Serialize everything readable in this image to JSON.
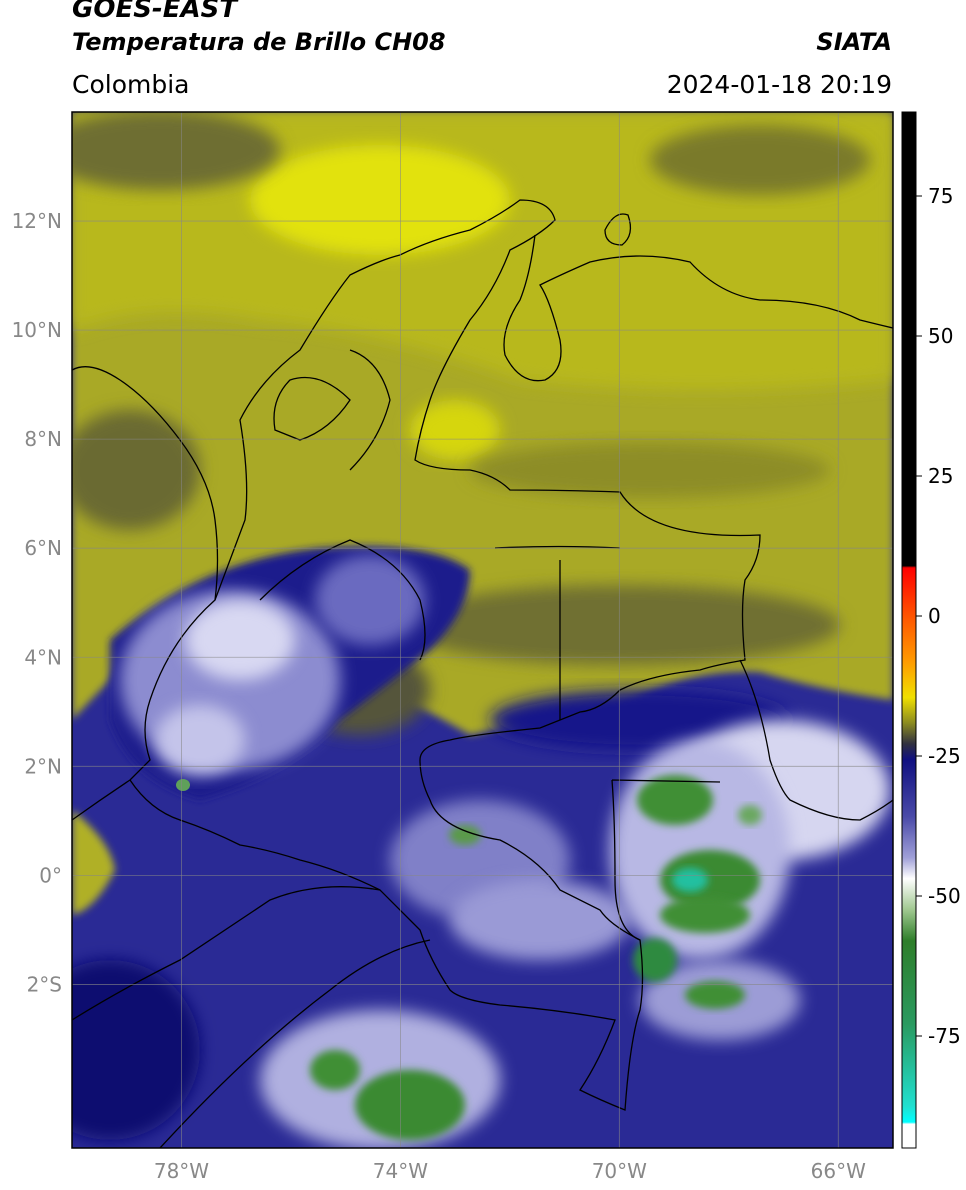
{
  "header": {
    "satellite": "GOES-EAST",
    "product": "Temperatura de Brillo CH08",
    "region": "Colombia",
    "source": "SIATA",
    "datetime": "2024-01-18 20:19"
  },
  "map": {
    "lat_range": [
      -5,
      14
    ],
    "lon_range": [
      -80,
      -65
    ],
    "lat_ticks": [
      {
        "value": 12,
        "label": "12°N"
      },
      {
        "value": 10,
        "label": "10°N"
      },
      {
        "value": 8,
        "label": "8°N"
      },
      {
        "value": 6,
        "label": "6°N"
      },
      {
        "value": 4,
        "label": "4°N"
      },
      {
        "value": 2,
        "label": "2°N"
      },
      {
        "value": 0,
        "label": "0°"
      },
      {
        "value": -2,
        "label": "2°S"
      }
    ],
    "lon_ticks": [
      {
        "value": -78,
        "label": "78°W"
      },
      {
        "value": -74,
        "label": "74°W"
      },
      {
        "value": -70,
        "label": "70°W"
      },
      {
        "value": -66,
        "label": "66°W"
      }
    ],
    "grid_color": "#888888"
  },
  "colorbar": {
    "range": [
      -95,
      90
    ],
    "ticks": [
      {
        "value": 75,
        "label": "75"
      },
      {
        "value": 50,
        "label": "50"
      },
      {
        "value": 25,
        "label": "25"
      },
      {
        "value": 0,
        "label": "0"
      },
      {
        "value": -25,
        "label": "-25"
      },
      {
        "value": -50,
        "label": "-50"
      },
      {
        "value": -75,
        "label": "-75"
      }
    ]
  },
  "colors": {
    "yellow_bright": "#e2e20a",
    "olive": "#8a8a25",
    "dark_olive": "#4e4e38",
    "navy": "#1a1a8a",
    "pale_blue": "#c8c8ea",
    "white": "#ffffff",
    "green": "#3f8f35",
    "teal": "#20c0a0",
    "red": "#ff2000",
    "black": "#000000"
  }
}
